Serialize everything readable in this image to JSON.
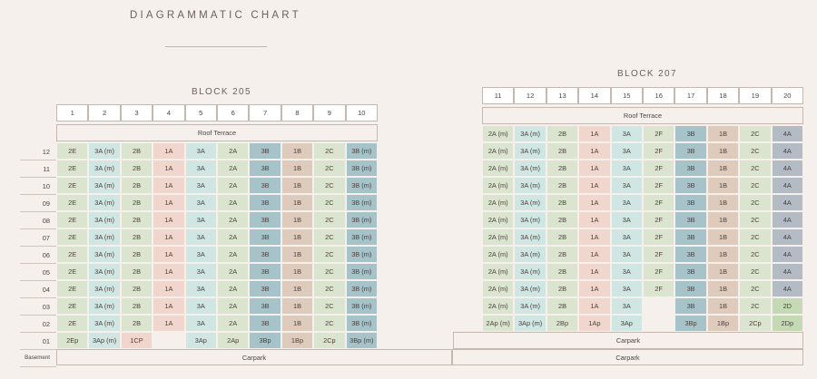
{
  "title": "DIAGRAMMATIC CHART",
  "levels": [
    "12",
    "11",
    "10",
    "09",
    "08",
    "07",
    "06",
    "05",
    "04",
    "03",
    "02",
    "01",
    "Basement"
  ],
  "colors": {
    "2E": "#dbe4ce",
    "2A": "#dbe4ce",
    "2B": "#dbe4ce",
    "2C": "#dbe4ce",
    "2F": "#dbe4ce",
    "3A": "#cfe6e2",
    "3A (m)": "#cfe6e2",
    "1A": "#f0d6cd",
    "1CP": "#f0d6cd",
    "3B": "#a7c3ca",
    "3B (m)": "#a7c3ca",
    "1B": "#dfcbbb",
    "4A": "#b3bbc4",
    "2D": "#c4dab5"
  },
  "block205": {
    "title": "BLOCK 205",
    "stacks": [
      "1",
      "2",
      "3",
      "4",
      "5",
      "6",
      "7",
      "8",
      "9",
      "10"
    ],
    "roof": "Roof Terrace",
    "types": [
      "2E",
      "3A (m)",
      "2B",
      "1A",
      "3A",
      "2A",
      "3B",
      "1B",
      "2C",
      "3B (m)"
    ],
    "level01": [
      "2Ep",
      "3Ap (m)",
      "1CP",
      "",
      "3Ap",
      "2Ap",
      "3Bp",
      "1Bp",
      "2Cp",
      "3Bp (m)"
    ],
    "basement": "Carpark"
  },
  "block207": {
    "title": "BLOCK 207",
    "stacks": [
      "11",
      "12",
      "13",
      "14",
      "15",
      "16",
      "17",
      "18",
      "19",
      "20"
    ],
    "roof": "Roof Terrace",
    "types": [
      "2A (m)",
      "3A (m)",
      "2B",
      "1A",
      "3A",
      "2F",
      "3B",
      "1B",
      "2C",
      "4A"
    ],
    "level03": [
      "2A (m)",
      "3A (m)",
      "2B",
      "1A",
      "3A",
      "",
      "3B",
      "1B",
      "2C",
      "2D"
    ],
    "level02": [
      "2Ap (m)",
      "3Ap (m)",
      "2Bp",
      "1Ap",
      "3Ap",
      "",
      "3Bp",
      "1Bp",
      "2Cp",
      "2Dp"
    ],
    "level01": "Carpark",
    "basement": "Carpark"
  }
}
